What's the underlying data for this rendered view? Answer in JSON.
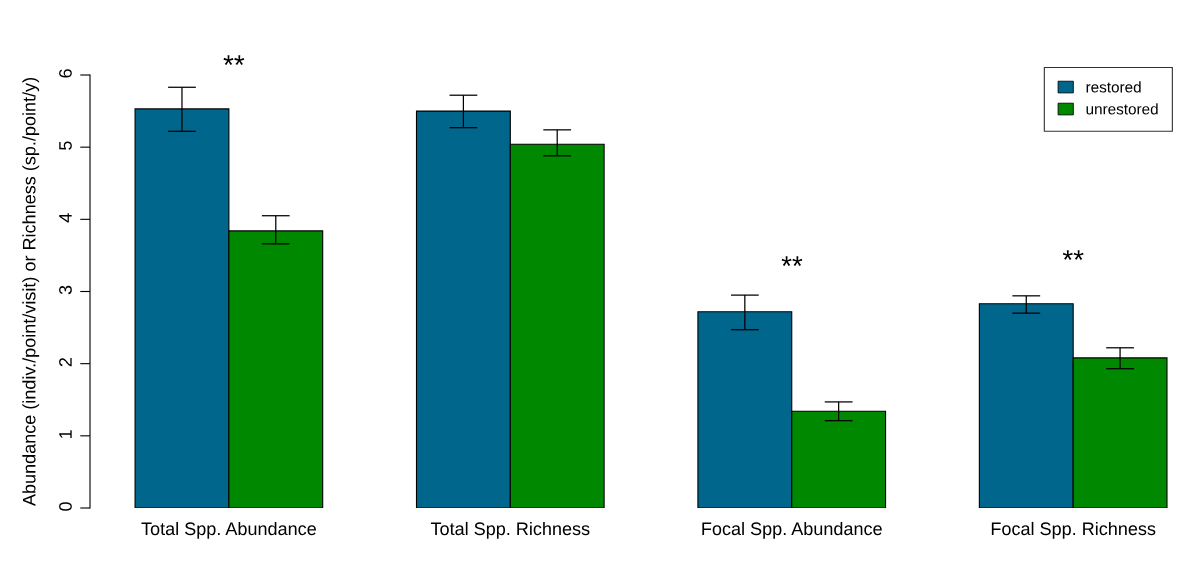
{
  "chart_data": {
    "type": "bar",
    "ylabel": "Abundance (indiv./point/visit) or Richness (sp./point/y)",
    "categories": [
      "Total Spp. Abundance",
      "Total Spp. Richness",
      "Focal Spp. Abundance",
      "Focal Spp. Richness"
    ],
    "series": [
      {
        "name": "restored",
        "color": "#00668c",
        "values": [
          5.53,
          5.5,
          2.72,
          2.83
        ],
        "errors": [
          [
            5.22,
            5.83
          ],
          [
            5.27,
            5.72
          ],
          [
            2.47,
            2.95
          ],
          [
            2.7,
            2.94
          ]
        ]
      },
      {
        "name": "unrestored",
        "color": "#008800",
        "values": [
          3.84,
          5.04,
          1.34,
          2.08
        ],
        "errors": [
          [
            3.66,
            4.05
          ],
          [
            4.88,
            5.24
          ],
          [
            1.21,
            1.47
          ],
          [
            1.93,
            2.22
          ]
        ]
      }
    ],
    "ylim": [
      0,
      6
    ],
    "yticks": [
      0,
      1,
      2,
      3,
      4,
      5,
      6
    ],
    "grid": false,
    "legend": "top right",
    "annotations": [
      "**",
      "**",
      "**"
    ]
  }
}
